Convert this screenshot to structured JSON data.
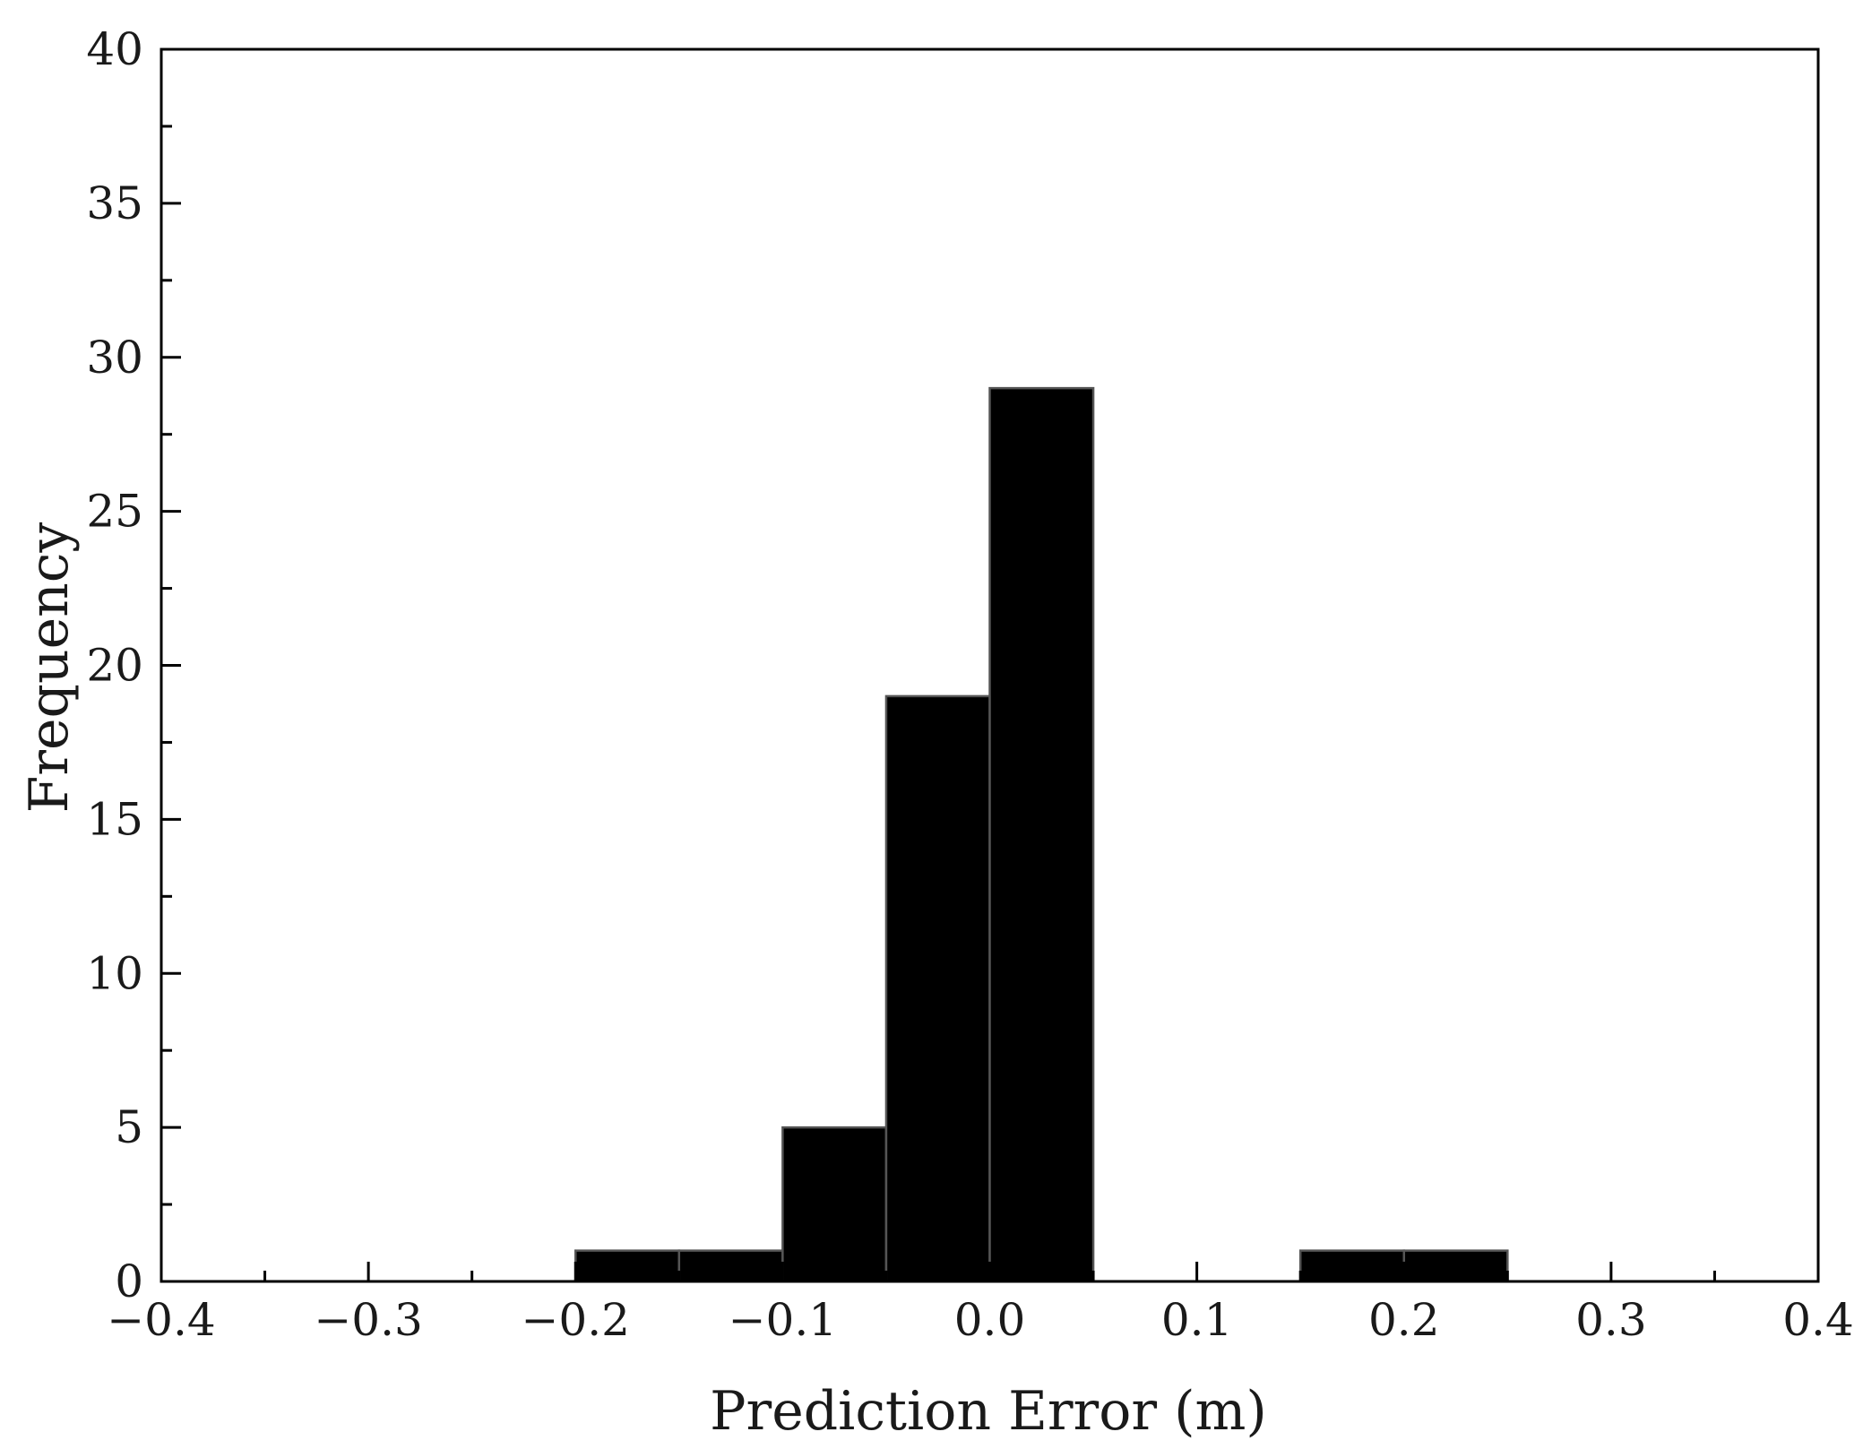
{
  "chart_data": {
    "type": "bar",
    "xlabel": "Prediction Error (m)",
    "ylabel": "Frequency",
    "xlim": [
      -0.4,
      0.4
    ],
    "ylim": [
      0,
      40
    ],
    "x_ticks": [
      -0.4,
      -0.3,
      -0.2,
      -0.1,
      0.0,
      0.1,
      0.2,
      0.3,
      0.4
    ],
    "x_tick_labels": [
      "−0.4",
      "−0.3",
      "−0.2",
      "−0.1",
      "0.0",
      "0.1",
      "0.2",
      "0.3",
      "0.4"
    ],
    "y_ticks": [
      0,
      5,
      10,
      15,
      20,
      25,
      30,
      35,
      40
    ],
    "y_tick_labels": [
      "0",
      "5",
      "10",
      "15",
      "20",
      "25",
      "30",
      "35",
      "40"
    ],
    "bin_width": 0.05,
    "bins": [
      {
        "x0": -0.2,
        "x1": -0.15,
        "count": 1
      },
      {
        "x0": -0.15,
        "x1": -0.1,
        "count": 1
      },
      {
        "x0": -0.1,
        "x1": -0.05,
        "count": 5
      },
      {
        "x0": -0.05,
        "x1": 0.0,
        "count": 19
      },
      {
        "x0": 0.0,
        "x1": 0.05,
        "count": 29
      },
      {
        "x0": 0.15,
        "x1": 0.2,
        "count": 1
      },
      {
        "x0": 0.2,
        "x1": 0.25,
        "count": 1
      }
    ],
    "grid": false,
    "bar_color": "#000000",
    "bar_edge_color": "#555555"
  }
}
